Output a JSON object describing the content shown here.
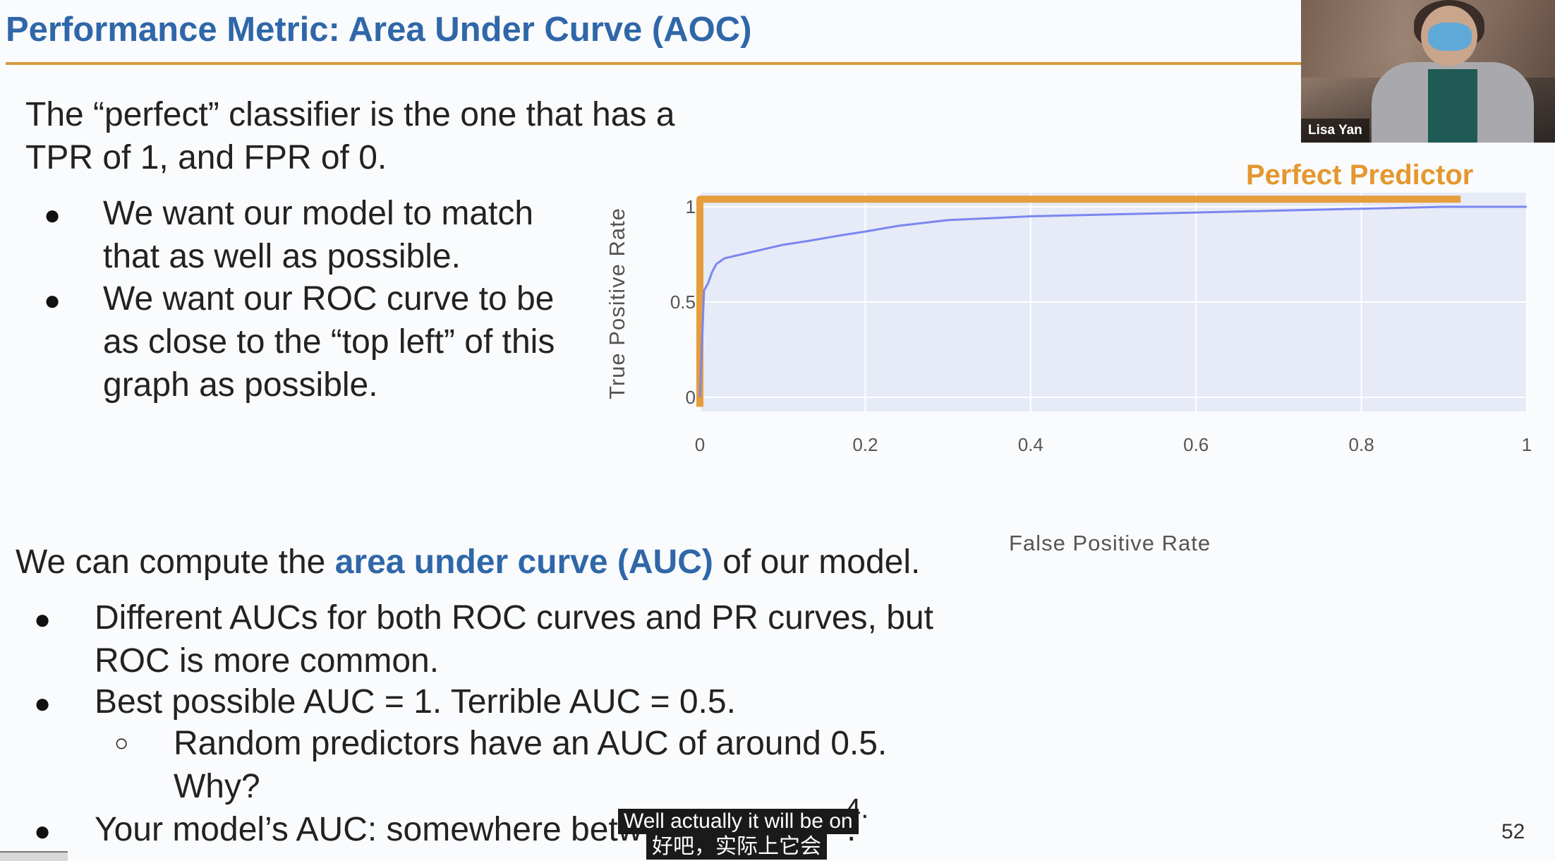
{
  "slide": {
    "title": "Performance Metric: Area Under Curve (AOC)",
    "intro_line1": "The “perfect” classifier is the one that has a",
    "intro_line2": "TPR of 1, and FPR of 0.",
    "bullets_top": [
      {
        "line1": "We want our model to match",
        "line2": "that as well as possible."
      },
      {
        "line1": "We want our ROC curve to be",
        "line2": "as close to the “top left” of this",
        "line3": "graph as possible."
      }
    ],
    "auc_prefix": "We can compute the ",
    "auc_emph": "area under curve (AUC)",
    "auc_suffix": " of our model.",
    "bullets_bottom": {
      "b1_line1": "Different AUCs for both ROC curves and PR curves, but",
      "b1_line2": "ROC is more common.",
      "b2": "Best possible AUC = 1. Terrible AUC = 0.5.",
      "sub1_line1": "Random predictors have an AUC of around 0.5.",
      "sub1_line2": "Why?",
      "b3_visible": "Your model’s AUC: somewhere betw",
      "b3_tail": ".",
      "b3_tail2": "4."
    },
    "page_number": "52"
  },
  "video": {
    "participant_name": "Lisa Yan"
  },
  "captions": {
    "english": "Well actually it will be on",
    "chinese": "好吧，实际上它会"
  },
  "chart_data": {
    "type": "line",
    "title": "",
    "xlabel": "False Positive Rate",
    "ylabel": "True Positive Rate",
    "xlim": [
      0,
      1
    ],
    "ylim": [
      0,
      1
    ],
    "x_ticks": [
      "0",
      "0.2",
      "0.4",
      "0.6",
      "0.8",
      "1"
    ],
    "y_ticks": [
      "0",
      "0.5",
      "1"
    ],
    "grid": true,
    "series": [
      {
        "name": "Perfect Predictor",
        "color": "#e69d3c",
        "x": [
          0,
          0,
          0.92
        ],
        "y": [
          -0.05,
          1.04,
          1.04
        ]
      },
      {
        "color": "#7b86f0",
        "x": [
          0,
          0.005,
          0.01,
          0.015,
          0.02,
          0.03,
          0.05,
          0.08,
          0.1,
          0.13,
          0.17,
          0.2,
          0.24,
          0.3,
          0.4,
          0.5,
          0.6,
          0.7,
          0.8,
          0.9,
          1.0
        ],
        "y": [
          0,
          0.56,
          0.6,
          0.66,
          0.7,
          0.73,
          0.75,
          0.78,
          0.8,
          0.82,
          0.85,
          0.87,
          0.9,
          0.93,
          0.95,
          0.96,
          0.97,
          0.98,
          0.99,
          1.0,
          1.0
        ]
      }
    ]
  }
}
